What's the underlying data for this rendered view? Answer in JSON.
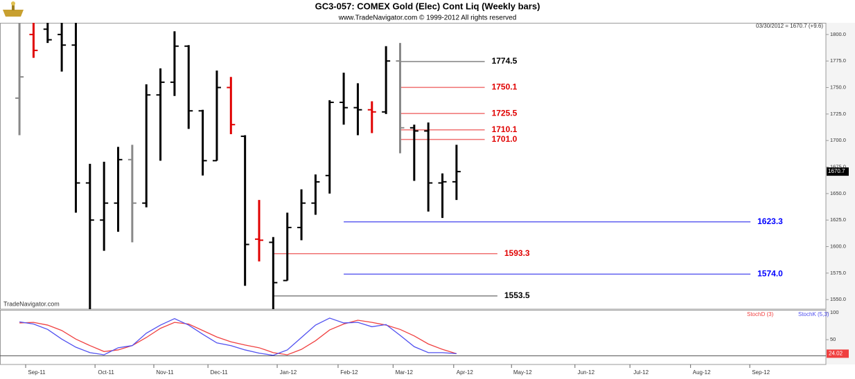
{
  "chart_data": [
    {
      "type": "ohlc",
      "title": "GC3-057:  COMEX Gold (Elec) Cont Liq  (Weekly bars)",
      "subtitle": "www.TradeNavigator.com © 1999-2012 All rights reserved",
      "header_info": "03/30/2012 = 1670.7 (+9.6)",
      "watermark": "TradeNavigator.com",
      "x": [
        0,
        1,
        2,
        3,
        4,
        5,
        6,
        7,
        8,
        9,
        10,
        11,
        12,
        13,
        14,
        15,
        16,
        17,
        18,
        19,
        20,
        21,
        22,
        23,
        24,
        25,
        26,
        27,
        28,
        29,
        30,
        31
      ],
      "open": [
        1740,
        1800,
        1805,
        1800,
        1790,
        1660,
        1625,
        1641,
        1682,
        1641,
        1743,
        1755,
        1789,
        1728,
        1681,
        1750,
        1704,
        1607,
        1604,
        1568,
        1618,
        1641,
        1667,
        1736,
        1731,
        1729,
        1727,
        1775,
        1712,
        1709,
        1660,
        1661.1
      ],
      "high": [
        1811,
        1811,
        1811,
        1811,
        1811,
        1678,
        1680,
        1694,
        1696,
        1753,
        1768,
        1803,
        1790,
        1729,
        1766,
        1760,
        1705,
        1644,
        1609,
        1632,
        1654,
        1668,
        1738,
        1764,
        1754,
        1737,
        1789,
        1792,
        1715,
        1717,
        1669,
        1696
      ],
      "low": [
        1705,
        1778,
        1792,
        1765,
        1632,
        1541,
        1596,
        1614,
        1604,
        1637,
        1681,
        1742,
        1711,
        1667,
        1681,
        1706,
        1563,
        1586,
        1541,
        1568,
        1606,
        1630,
        1650,
        1715,
        1705,
        1707,
        1725,
        1688,
        1662,
        1633,
        1627,
        1644
      ],
      "close": [
        1760,
        1785,
        1795,
        1790,
        1660,
        1625,
        1641,
        1682,
        1641,
        1743,
        1755,
        1789,
        1728,
        1681,
        1750,
        1715,
        1602,
        1606,
        1566,
        1618,
        1641,
        1661,
        1736,
        1731,
        1729,
        1727,
        1775,
        1712,
        1709,
        1660,
        1661.1,
        1670.7
      ],
      "colors": [
        "#888888",
        "#e00000",
        "#000000",
        "#000000",
        "#000000",
        "#000000",
        "#000000",
        "#000000",
        "#888888",
        "#000000",
        "#000000",
        "#000000",
        "#000000",
        "#000000",
        "#000000",
        "#e00000",
        "#000000",
        "#e00000",
        "#000000",
        "#000000",
        "#000000",
        "#000000",
        "#000000",
        "#000000",
        "#000000",
        "#e00000",
        "#000000",
        "#888888",
        "#000000",
        "#000000",
        "#000000",
        "#000000"
      ],
      "xlim": [
        -1.38,
        57.2
      ],
      "ylim": [
        1541,
        1811
      ],
      "yticks": [
        {
          "value": 1800,
          "label": "1800.0"
        },
        {
          "value": 1775,
          "label": "1775.0"
        },
        {
          "value": 1750,
          "label": "1750.0"
        },
        {
          "value": 1725,
          "label": "1725.0"
        },
        {
          "value": 1700,
          "label": "1700.0"
        },
        {
          "value": 1675,
          "label": "1675.0"
        },
        {
          "value": 1650,
          "label": "1650.0"
        },
        {
          "value": 1625,
          "label": "1625.0"
        },
        {
          "value": 1600,
          "label": "1600.0"
        },
        {
          "value": 1575,
          "label": "1575.0"
        },
        {
          "value": 1550,
          "label": "1550.0"
        }
      ],
      "levels": [
        {
          "value": 1774.5,
          "label": "1774.5",
          "color": "#808080",
          "label_color": "#000000",
          "x": [
            27,
            33
          ]
        },
        {
          "value": 1750.1,
          "label": "1750.1",
          "color": "#f07070",
          "label_color": "#e00000",
          "x": [
            27,
            33
          ]
        },
        {
          "value": 1725.5,
          "label": "1725.5",
          "color": "#f07070",
          "label_color": "#e00000",
          "x": [
            27,
            33
          ]
        },
        {
          "value": 1710.1,
          "label": "1710.1",
          "color": "#f07070",
          "label_color": "#e00000",
          "x": [
            27,
            33
          ]
        },
        {
          "value": 1701.0,
          "label": "1701.0",
          "color": "#f07070",
          "label_color": "#e00000",
          "x": [
            27,
            33
          ]
        },
        {
          "value": 1623.3,
          "label": "1623.3",
          "color": "#6060f0",
          "label_color": "#0000ff",
          "x": [
            23,
            51.85
          ]
        },
        {
          "value": 1593.3,
          "label": "1593.3",
          "color": "#f07070",
          "label_color": "#e00000",
          "x": [
            18,
            33.9
          ]
        },
        {
          "value": 1574.0,
          "label": "1574.0",
          "color": "#6060f0",
          "label_color": "#0000ff",
          "x": [
            23,
            51.85
          ]
        },
        {
          "value": 1553.5,
          "label": "1553.5",
          "color": "#808080",
          "label_color": "#000000",
          "x": [
            18,
            33.9
          ]
        }
      ]
    },
    {
      "type": "line",
      "x": [
        0,
        1,
        2,
        3,
        4,
        5,
        6,
        7,
        8,
        9,
        10,
        11,
        12,
        13,
        14,
        15,
        16,
        17,
        18,
        19,
        20,
        21,
        22,
        23,
        24,
        25,
        26,
        27,
        28,
        29,
        30,
        31
      ],
      "series": [
        {
          "name": "StochD (3)",
          "color": "#f04040",
          "values": [
            81,
            82,
            77,
            67,
            51,
            39,
            28,
            31,
            39,
            54,
            71,
            82,
            79,
            67,
            55,
            46,
            40,
            35,
            26,
            22,
            32,
            48,
            68,
            79,
            86,
            82,
            77,
            69,
            57,
            42,
            32,
            24.02
          ]
        },
        {
          "name": "StochK (5,3)",
          "color": "#5050f0",
          "values": [
            83,
            79,
            69,
            51,
            36,
            26,
            22,
            35,
            39,
            62,
            77,
            89,
            77,
            60,
            44,
            39,
            31,
            25,
            21,
            31,
            54,
            77,
            90,
            81,
            82,
            74,
            78,
            58,
            37,
            26,
            26,
            24
          ]
        }
      ],
      "xlim": [
        -1.38,
        57.2
      ],
      "ylim": [
        4,
        104
      ],
      "yticks": [
        50,
        100
      ],
      "ref_lines": [
        20
      ],
      "xticks": [
        {
          "value": 0.44,
          "label": "Sep-11"
        },
        {
          "value": 5.36,
          "label": "Oct-11"
        },
        {
          "value": 9.53,
          "label": "Nov-11"
        },
        {
          "value": 13.37,
          "label": "Dec-11"
        },
        {
          "value": 18.28,
          "label": "Jan-12"
        },
        {
          "value": 22.6,
          "label": "Feb-12"
        },
        {
          "value": 26.5,
          "label": "Mar-12"
        },
        {
          "value": 30.8,
          "label": "Apr-12"
        },
        {
          "value": 34.9,
          "label": "May-12"
        },
        {
          "value": 39.4,
          "label": "Jun-12"
        },
        {
          "value": 43.3,
          "label": "Jul-12"
        },
        {
          "value": 47.6,
          "label": "Aug-12"
        },
        {
          "value": 51.8,
          "label": "Sep-12"
        }
      ]
    }
  ]
}
